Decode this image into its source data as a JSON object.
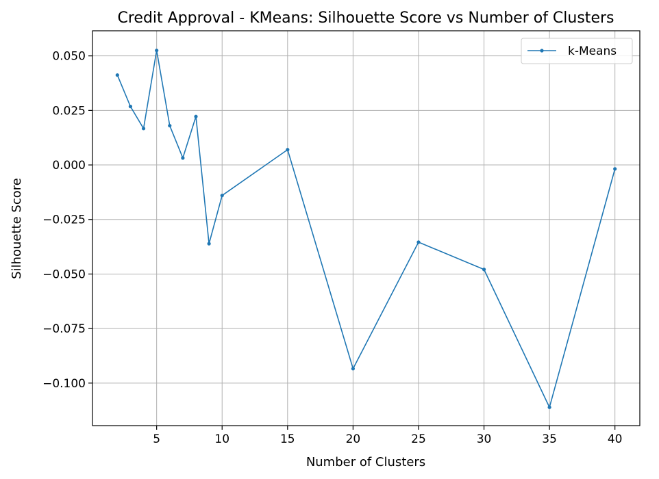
{
  "chart_data": {
    "type": "line",
    "title": "Credit Approval - KMeans: Silhouette Score vs Number of Clusters",
    "xlabel": "Number of Clusters",
    "ylabel": "Silhouette Score",
    "xlim": [
      0.1,
      41.9
    ],
    "ylim": [
      -0.1195,
      0.0615
    ],
    "xticks": [
      5,
      10,
      15,
      20,
      25,
      30,
      35,
      40
    ],
    "xtick_labels": [
      "5",
      "10",
      "15",
      "20",
      "25",
      "30",
      "35",
      "40"
    ],
    "yticks": [
      0.05,
      0.025,
      0.0,
      -0.025,
      -0.05,
      -0.075,
      -0.1
    ],
    "ytick_labels": [
      "0.050",
      "0.025",
      "0.000",
      "−0.025",
      "−0.050",
      "−0.075",
      "−0.100"
    ],
    "grid": true,
    "legend_position": "top-right",
    "series": [
      {
        "name": "k-Means",
        "color": "#1f77b4",
        "marker": "dot",
        "x": [
          2,
          3,
          4,
          5,
          6,
          7,
          8,
          9,
          10,
          15,
          20,
          25,
          30,
          35,
          40
        ],
        "y": [
          0.0412,
          0.0268,
          0.0167,
          0.0525,
          0.018,
          0.0032,
          0.0222,
          -0.0361,
          -0.014,
          0.007,
          -0.0934,
          -0.0354,
          -0.0479,
          -0.1111,
          -0.0018
        ]
      }
    ]
  }
}
